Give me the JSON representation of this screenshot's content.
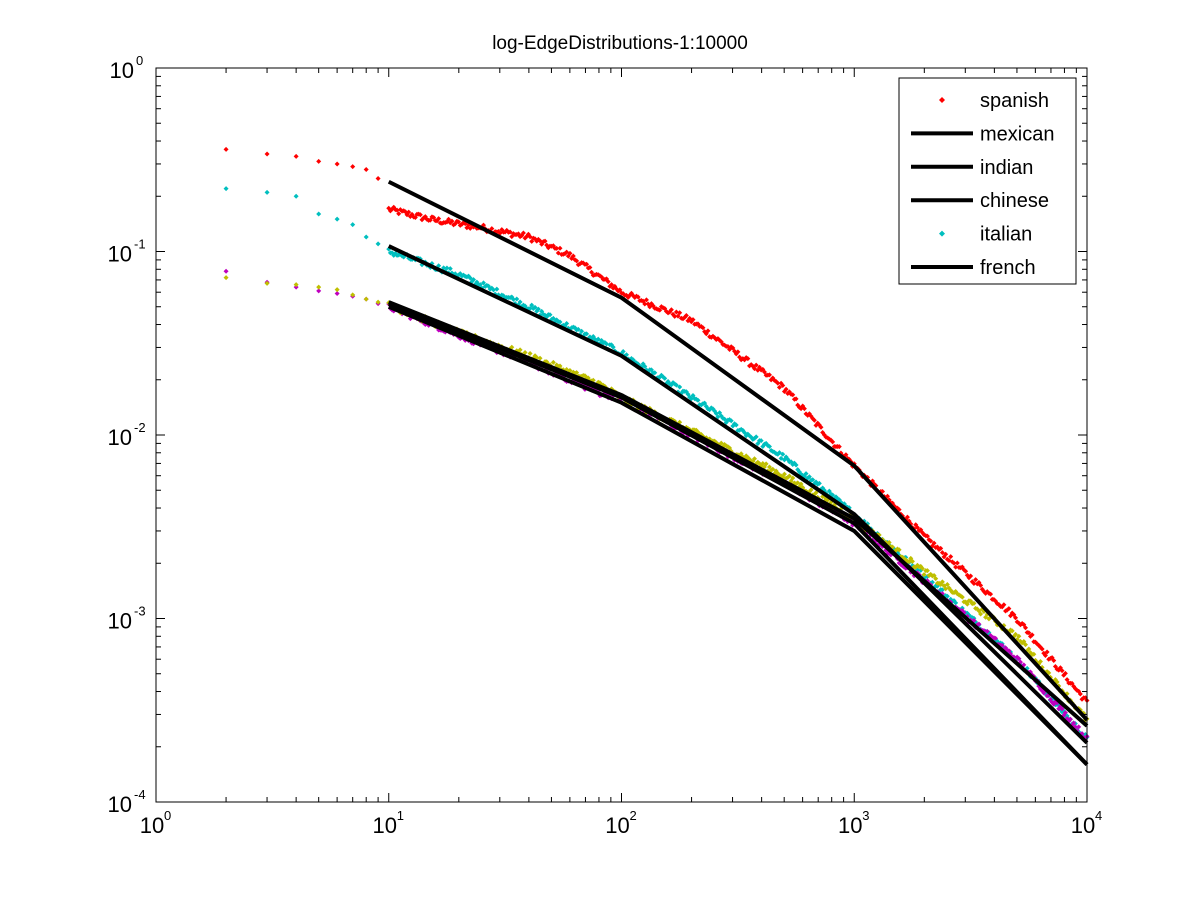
{
  "chart_data": {
    "type": "scatter",
    "title": "log-EdgeDistributions-1:10000",
    "xlabel": "",
    "ylabel": "",
    "xscale": "log",
    "yscale": "log",
    "xlim": [
      1,
      10000
    ],
    "ylim": [
      0.0001,
      1
    ],
    "grid": false,
    "legend_position": "top-right",
    "x_ticks": [
      {
        "base": "10",
        "exp": "0",
        "value": 1
      },
      {
        "base": "10",
        "exp": "1",
        "value": 10
      },
      {
        "base": "10",
        "exp": "2",
        "value": 100
      },
      {
        "base": "10",
        "exp": "3",
        "value": 1000
      },
      {
        "base": "10",
        "exp": "4",
        "value": 10000
      }
    ],
    "y_ticks": [
      {
        "base": "10",
        "exp": "0",
        "value": 1
      },
      {
        "base": "10",
        "exp": "-1",
        "value": 0.1
      },
      {
        "base": "10",
        "exp": "-2",
        "value": 0.01
      },
      {
        "base": "10",
        "exp": "-3",
        "value": 0.001
      },
      {
        "base": "10",
        "exp": "-4",
        "value": 0.0001
      }
    ],
    "legend": [
      {
        "name": "spanish",
        "marker": "dot",
        "color": "#ff0000"
      },
      {
        "name": "mexican",
        "marker": "line",
        "color": "#000000"
      },
      {
        "name": "indian",
        "marker": "line",
        "color": "#000000"
      },
      {
        "name": "chinese",
        "marker": "line",
        "color": "#000000"
      },
      {
        "name": "italian",
        "marker": "dot",
        "color": "#00bfbf"
      },
      {
        "name": "french",
        "marker": "line",
        "color": "#000000"
      }
    ],
    "series": [
      {
        "key": "red",
        "color": "#ff0000",
        "kind": "points",
        "head": [
          [
            2,
            0.36
          ],
          [
            3,
            0.34
          ],
          [
            4,
            0.33
          ],
          [
            5,
            0.31
          ],
          [
            6,
            0.3
          ],
          [
            7,
            0.29
          ],
          [
            8,
            0.28
          ],
          [
            9,
            0.25
          ]
        ],
        "anchors": [
          [
            10,
            0.17
          ],
          [
            15,
            0.15
          ],
          [
            25,
            0.135
          ],
          [
            40,
            0.12
          ],
          [
            60,
            0.095
          ],
          [
            100,
            0.06
          ],
          [
            200,
            0.042
          ],
          [
            500,
            0.018
          ],
          [
            1000,
            0.0068
          ],
          [
            2000,
            0.0028
          ],
          [
            5000,
            0.001
          ],
          [
            10000,
            0.00035
          ]
        ]
      },
      {
        "key": "cyan",
        "color": "#00bfbf",
        "kind": "points",
        "head": [
          [
            2,
            0.22
          ],
          [
            3,
            0.21
          ],
          [
            4,
            0.2
          ],
          [
            5,
            0.16
          ],
          [
            6,
            0.15
          ],
          [
            7,
            0.14
          ],
          [
            8,
            0.12
          ],
          [
            9,
            0.11
          ]
        ],
        "anchors": [
          [
            10,
            0.1
          ],
          [
            20,
            0.075
          ],
          [
            40,
            0.05
          ],
          [
            70,
            0.035
          ],
          [
            100,
            0.028
          ],
          [
            200,
            0.016
          ],
          [
            500,
            0.0075
          ],
          [
            1000,
            0.0037
          ],
          [
            2000,
            0.0017
          ],
          [
            5000,
            0.0006
          ],
          [
            10000,
            0.00022
          ]
        ]
      },
      {
        "key": "magenta",
        "color": "#bf00bf",
        "kind": "points",
        "head": [
          [
            2,
            0.078
          ],
          [
            3,
            0.068
          ],
          [
            4,
            0.064
          ],
          [
            5,
            0.061
          ],
          [
            6,
            0.059
          ],
          [
            7,
            0.057
          ],
          [
            8,
            0.055
          ],
          [
            9,
            0.052
          ]
        ],
        "anchors": [
          [
            10,
            0.05
          ],
          [
            20,
            0.035
          ],
          [
            40,
            0.025
          ],
          [
            80,
            0.017
          ],
          [
            100,
            0.016
          ],
          [
            200,
            0.01
          ],
          [
            500,
            0.0055
          ],
          [
            1000,
            0.0033
          ],
          [
            2000,
            0.0016
          ],
          [
            5000,
            0.0006
          ],
          [
            10000,
            0.00022
          ]
        ]
      },
      {
        "key": "olive",
        "color": "#bfbf00",
        "kind": "points",
        "head": [
          [
            2,
            0.072
          ],
          [
            3,
            0.067
          ],
          [
            4,
            0.066
          ],
          [
            5,
            0.064
          ],
          [
            6,
            0.062
          ],
          [
            7,
            0.058
          ],
          [
            8,
            0.055
          ],
          [
            9,
            0.053
          ]
        ],
        "anchors": [
          [
            10,
            0.051
          ],
          [
            20,
            0.036
          ],
          [
            40,
            0.027
          ],
          [
            80,
            0.019
          ],
          [
            100,
            0.016
          ],
          [
            200,
            0.0105
          ],
          [
            500,
            0.006
          ],
          [
            1000,
            0.0035
          ],
          [
            2000,
            0.0018
          ],
          [
            5000,
            0.0008
          ],
          [
            10000,
            0.00028
          ]
        ]
      }
    ],
    "fit_lines": [
      {
        "key": "fit-spanish",
        "points": [
          [
            10,
            0.24
          ],
          [
            100,
            0.056
          ],
          [
            1000,
            0.0068
          ],
          [
            10000,
            0.00028
          ]
        ]
      },
      {
        "key": "fit-italian",
        "points": [
          [
            10,
            0.107
          ],
          [
            100,
            0.027
          ],
          [
            1000,
            0.0037
          ],
          [
            10000,
            0.00021
          ]
        ]
      },
      {
        "key": "fit-a",
        "points": [
          [
            10,
            0.053
          ],
          [
            100,
            0.0165
          ],
          [
            1000,
            0.0035
          ],
          [
            10000,
            0.00026
          ]
        ]
      },
      {
        "key": "fit-b",
        "points": [
          [
            10,
            0.052
          ],
          [
            100,
            0.016
          ],
          [
            1000,
            0.0033
          ],
          [
            10000,
            0.00016
          ]
        ]
      },
      {
        "key": "fit-c",
        "points": [
          [
            10,
            0.05
          ],
          [
            100,
            0.015
          ],
          [
            1000,
            0.003
          ],
          [
            10000,
            0.00016
          ]
        ]
      }
    ]
  }
}
